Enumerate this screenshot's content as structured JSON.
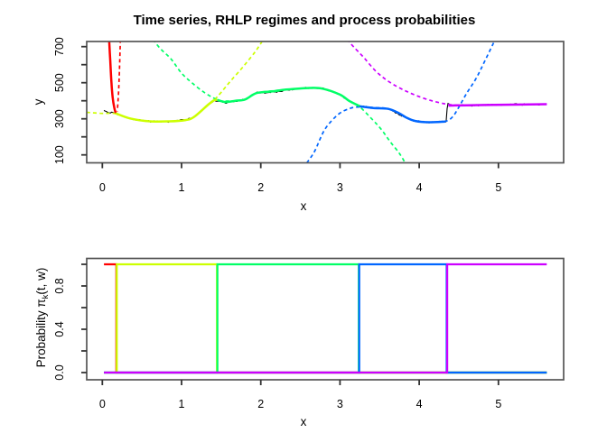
{
  "figure_title": "Time series, RHLP regimes and process probabilities",
  "colors": {
    "regime1": "#FF0000",
    "regime2": "#CCFF00",
    "regime3": "#00FF66",
    "regime4": "#0066FF",
    "regime5": "#CC00FF",
    "data": "#000000",
    "axis_box": "#555555"
  },
  "chart_data": [
    {
      "type": "line",
      "panel": "top",
      "title": "Time series, RHLP regimes and process probabilities",
      "xlabel": "x",
      "ylabel": "y",
      "xlim": [
        -0.22,
        5.82
      ],
      "ylim": [
        76,
        724
      ],
      "grid": false,
      "legend": "none",
      "xticks": [
        0,
        1,
        2,
        3,
        4,
        5
      ],
      "xtick_labels": [
        "0",
        "1",
        "2",
        "3",
        "4",
        "5"
      ],
      "yticks": [
        100,
        200,
        300,
        400,
        500,
        600,
        700
      ],
      "ytick_labels": [
        "100",
        "",
        "300",
        "",
        "500",
        "",
        "700"
      ],
      "series": [
        {
          "name": "time-series-data",
          "color": "#000000",
          "dash": "none",
          "width": 1.1,
          "smooth": false,
          "noise": 8,
          "step": 0.012,
          "points": [
            [
              0.02,
              346
            ],
            [
              0.07,
              338
            ],
            [
              0.12,
              333
            ],
            [
              0.17,
              329
            ],
            [
              0.35,
              302
            ],
            [
              0.6,
              286
            ],
            [
              0.85,
              286
            ],
            [
              1.05,
              293
            ],
            [
              1.16,
              311
            ],
            [
              1.33,
              376
            ],
            [
              1.41,
              402
            ],
            [
              1.47,
              403
            ],
            [
              1.56,
              391
            ],
            [
              1.68,
              399
            ],
            [
              1.8,
              407
            ],
            [
              1.95,
              444
            ],
            [
              2.15,
              446
            ],
            [
              2.32,
              462
            ],
            [
              2.62,
              471
            ],
            [
              2.78,
              466
            ],
            [
              3.0,
              434
            ],
            [
              3.12,
              397
            ],
            [
              3.25,
              369
            ],
            [
              3.42,
              360
            ],
            [
              3.61,
              356
            ],
            [
              3.84,
              307
            ],
            [
              3.95,
              287
            ],
            [
              4.12,
              281
            ],
            [
              4.33,
              285
            ],
            [
              4.345,
              285
            ],
            [
              4.355,
              390
            ],
            [
              4.37,
              378
            ],
            [
              4.42,
              373
            ],
            [
              4.75,
              376
            ],
            [
              5.2,
              378
            ],
            [
              5.61,
              381
            ]
          ]
        },
        {
          "name": "regime-1-poly-dashed",
          "color": "#FF0000",
          "dash": "4 3.2",
          "width": 1.7,
          "smooth": true,
          "points": [
            [
              0.228,
              740
            ],
            [
              0.215,
              560
            ],
            [
              0.205,
              450
            ],
            [
              0.195,
              380
            ],
            [
              0.188,
              341
            ]
          ]
        },
        {
          "name": "regime-2-poly-dashed",
          "color": "#CCFF00",
          "dash": "4 3.2",
          "width": 1.7,
          "smooth": true,
          "points": [
            [
              -0.2,
              336
            ],
            [
              0.0,
              330
            ],
            [
              0.17,
              329
            ],
            [
              0.35,
              302
            ],
            [
              0.6,
              286
            ],
            [
              0.85,
              286
            ],
            [
              1.05,
              293
            ],
            [
              1.16,
              311
            ],
            [
              1.33,
              376
            ],
            [
              1.41,
              403
            ],
            [
              1.5,
              447
            ],
            [
              1.62,
              510
            ],
            [
              1.78,
              590
            ],
            [
              1.93,
              672
            ],
            [
              2.03,
              738
            ]
          ]
        },
        {
          "name": "regime-3-poly-dashed",
          "color": "#00FF66",
          "dash": "4 3.2",
          "width": 1.7,
          "smooth": true,
          "points": [
            [
              0.64,
              740
            ],
            [
              0.73,
              690
            ],
            [
              0.87,
              630
            ],
            [
              1.0,
              553
            ],
            [
              1.13,
              500
            ],
            [
              1.28,
              448
            ],
            [
              1.42,
              412
            ],
            [
              1.5,
              399
            ],
            [
              1.68,
              400
            ],
            [
              1.8,
              407
            ],
            [
              1.95,
              443
            ],
            [
              2.32,
              462
            ],
            [
              2.62,
              471
            ],
            [
              2.78,
              467
            ],
            [
              3.0,
              434
            ],
            [
              3.12,
              398
            ],
            [
              3.24,
              370
            ],
            [
              3.4,
              300
            ],
            [
              3.52,
              242
            ],
            [
              3.63,
              175
            ],
            [
              3.75,
              108
            ],
            [
              3.83,
              50
            ]
          ]
        },
        {
          "name": "regime-4-poly-dashed",
          "color": "#0066FF",
          "dash": "4 3.2",
          "width": 1.7,
          "smooth": true,
          "points": [
            [
              2.58,
              55
            ],
            [
              2.68,
              120
            ],
            [
              2.81,
              242
            ],
            [
              2.98,
              325
            ],
            [
              3.13,
              358
            ],
            [
              3.25,
              366
            ],
            [
              3.45,
              362
            ],
            [
              3.61,
              356
            ],
            [
              3.75,
              330
            ],
            [
              3.84,
              306
            ],
            [
              3.95,
              288
            ],
            [
              4.12,
              281
            ],
            [
              4.33,
              286
            ],
            [
              4.42,
              310
            ],
            [
              4.49,
              357
            ],
            [
              4.6,
              442
            ],
            [
              4.72,
              525
            ],
            [
              4.83,
              622
            ],
            [
              4.96,
              740
            ]
          ]
        },
        {
          "name": "regime-5-poly-dashed",
          "color": "#CC00FF",
          "dash": "4 3.2",
          "width": 1.7,
          "smooth": true,
          "points": [
            [
              3.09,
              740
            ],
            [
              3.17,
              700
            ],
            [
              3.3,
              640
            ],
            [
              3.45,
              565
            ],
            [
              3.62,
              505
            ],
            [
              3.84,
              452
            ],
            [
              4.07,
              412
            ],
            [
              4.25,
              390
            ],
            [
              4.4,
              378
            ],
            [
              4.6,
              375
            ],
            [
              4.95,
              377
            ],
            [
              5.3,
              379
            ],
            [
              5.61,
              381
            ]
          ]
        },
        {
          "name": "regime-1-mean",
          "color": "#FF0000",
          "dash": "none",
          "width": 2.5,
          "smooth": true,
          "points": [
            [
              0.085,
              740
            ],
            [
              0.1,
              620
            ],
            [
              0.115,
              500
            ],
            [
              0.13,
              420
            ],
            [
              0.15,
              362
            ],
            [
              0.17,
              332
            ]
          ]
        },
        {
          "name": "regime-2-mean",
          "color": "#CCFF00",
          "dash": "none",
          "width": 2.5,
          "smooth": true,
          "points": [
            [
              0.17,
              330
            ],
            [
              0.35,
              302
            ],
            [
              0.6,
              286
            ],
            [
              0.85,
              286
            ],
            [
              1.05,
              293
            ],
            [
              1.16,
              311
            ],
            [
              1.33,
              376
            ],
            [
              1.41,
              403
            ],
            [
              1.45,
              405
            ]
          ]
        },
        {
          "name": "regime-3-mean",
          "color": "#00FF66",
          "dash": "none",
          "width": 2.5,
          "smooth": true,
          "points": [
            [
              1.45,
              405
            ],
            [
              1.55,
              393
            ],
            [
              1.68,
              400
            ],
            [
              1.8,
              407
            ],
            [
              1.95,
              443
            ],
            [
              2.15,
              452
            ],
            [
              2.32,
              462
            ],
            [
              2.62,
              471
            ],
            [
              2.78,
              467
            ],
            [
              3.0,
              434
            ],
            [
              3.12,
              398
            ],
            [
              3.25,
              370
            ]
          ]
        },
        {
          "name": "regime-4-mean",
          "color": "#0066FF",
          "dash": "none",
          "width": 2.5,
          "smooth": true,
          "points": [
            [
              3.25,
              369
            ],
            [
              3.42,
              360
            ],
            [
              3.61,
              355
            ],
            [
              3.75,
              330
            ],
            [
              3.84,
              306
            ],
            [
              3.95,
              288
            ],
            [
              4.12,
              281
            ],
            [
              4.33,
              285
            ]
          ]
        },
        {
          "name": "regime-5-mean",
          "color": "#CC00FF",
          "dash": "none",
          "width": 2.5,
          "smooth": true,
          "points": [
            [
              4.37,
              373
            ],
            [
              4.6,
              375
            ],
            [
              4.95,
              377
            ],
            [
              5.3,
              379
            ],
            [
              5.61,
              381
            ]
          ]
        }
      ]
    },
    {
      "type": "line",
      "panel": "bottom",
      "xlabel": "x",
      "ylabel_parts": {
        "main": "Probability  π",
        "sub": "k",
        "rest": "(t, w)"
      },
      "xlim": [
        -0.22,
        5.82
      ],
      "ylim": [
        -0.06,
        1.06
      ],
      "grid": false,
      "legend": "none",
      "xticks": [
        0,
        1,
        2,
        3,
        4,
        5
      ],
      "xtick_labels": [
        "0",
        "1",
        "2",
        "3",
        "4",
        "5"
      ],
      "yticks": [
        0,
        0.2,
        0.4,
        0.6,
        0.8,
        1.0
      ],
      "ytick_labels": [
        "0.0",
        "",
        "0.4",
        "",
        "0.8",
        ""
      ],
      "transition_points_x": [
        0.18,
        1.45,
        3.24,
        4.35
      ],
      "series": [
        {
          "name": "pi-1-red",
          "color": "#FF0000",
          "dash": "none",
          "width": 2.2,
          "smooth": false,
          "points": [
            [
              0.02,
              1
            ],
            [
              0.177,
              1
            ],
            [
              0.177,
              0
            ],
            [
              5.61,
              0
            ]
          ]
        },
        {
          "name": "pi-2-yellow",
          "color": "#CCFF00",
          "dash": "none",
          "width": 2.2,
          "smooth": false,
          "points": [
            [
              0.02,
              0
            ],
            [
              0.183,
              0
            ],
            [
              0.183,
              1
            ],
            [
              1.447,
              1
            ],
            [
              1.447,
              0
            ],
            [
              5.61,
              0
            ]
          ]
        },
        {
          "name": "pi-3-green",
          "color": "#00FF66",
          "dash": "none",
          "width": 2.2,
          "smooth": false,
          "points": [
            [
              0.02,
              0
            ],
            [
              1.453,
              0
            ],
            [
              1.453,
              1
            ],
            [
              3.237,
              1
            ],
            [
              3.237,
              0
            ],
            [
              5.61,
              0
            ]
          ]
        },
        {
          "name": "pi-4-blue",
          "color": "#0066FF",
          "dash": "none",
          "width": 2.2,
          "smooth": false,
          "points": [
            [
              0.02,
              0
            ],
            [
              3.243,
              0
            ],
            [
              3.243,
              1
            ],
            [
              4.347,
              1
            ],
            [
              4.347,
              0
            ],
            [
              5.61,
              0
            ]
          ]
        },
        {
          "name": "pi-5-magenta",
          "color": "#CC00FF",
          "dash": "none",
          "width": 2.2,
          "smooth": false,
          "points": [
            [
              0.02,
              0
            ],
            [
              4.353,
              0
            ],
            [
              4.353,
              1
            ],
            [
              5.61,
              1
            ]
          ]
        }
      ]
    }
  ]
}
